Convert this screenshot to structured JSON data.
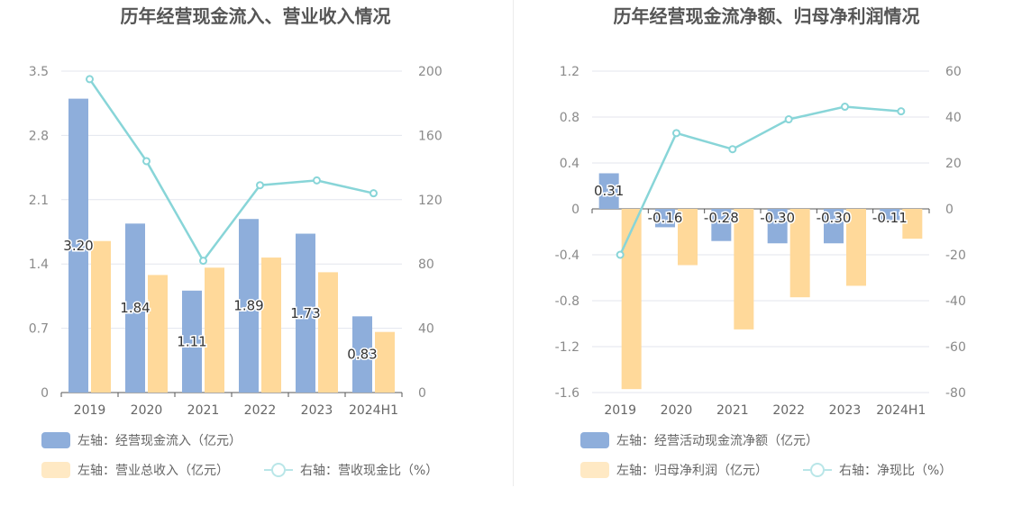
{
  "chart_data": [
    {
      "type": "bar",
      "title": "历年经营现金流入、营业收入情况",
      "categories": [
        "2019",
        "2020",
        "2021",
        "2022",
        "2023",
        "2024H1"
      ],
      "y_left": {
        "ticks": [
          "0",
          "0.7",
          "1.4",
          "2.1",
          "2.8",
          "3.5"
        ],
        "range": [
          0,
          3.5
        ]
      },
      "y_right": {
        "ticks": [
          "0",
          "40",
          "80",
          "120",
          "160",
          "200"
        ],
        "range": [
          0,
          200
        ]
      },
      "series": [
        {
          "name": "左轴：经营现金流入（亿元）",
          "type": "bar",
          "axis": "left",
          "color": "#8eaedb",
          "values": [
            3.2,
            1.84,
            1.11,
            1.89,
            1.73,
            0.83
          ],
          "labels": [
            "3.20",
            "1.84",
            "1.11",
            "1.89",
            "1.73",
            "0.83"
          ]
        },
        {
          "name": "左轴：营业总收入（亿元）",
          "type": "bar",
          "axis": "left",
          "color": "#ffd99a",
          "values": [
            1.65,
            1.28,
            1.36,
            1.47,
            1.31,
            0.66
          ]
        },
        {
          "name": "右轴：营收现金比（%）",
          "type": "line",
          "axis": "right",
          "color": "#88d5d8",
          "values": [
            195,
            144,
            82,
            129,
            132,
            124
          ]
        }
      ],
      "grid": true,
      "legend_position": "bottom-left"
    },
    {
      "type": "bar",
      "title": "历年经营现金流净额、归母净利润情况",
      "categories": [
        "2019",
        "2020",
        "2021",
        "2022",
        "2023",
        "2024H1"
      ],
      "y_left": {
        "ticks": [
          "-1.6",
          "-1.2",
          "-0.8",
          "-0.4",
          "0",
          "0.4",
          "0.8",
          "1.2"
        ],
        "range": [
          -1.6,
          1.2
        ]
      },
      "y_right": {
        "ticks": [
          "-80",
          "-60",
          "-40",
          "-20",
          "0",
          "20",
          "40",
          "60"
        ],
        "range": [
          -80,
          60
        ]
      },
      "series": [
        {
          "name": "左轴：经营活动现金流净额（亿元）",
          "type": "bar",
          "axis": "left",
          "color": "#8eaedb",
          "values": [
            0.31,
            -0.16,
            -0.28,
            -0.3,
            -0.3,
            -0.11
          ],
          "labels": [
            "0.31",
            "-0.16",
            "-0.28",
            "-0.30",
            "-0.30",
            "-0.11"
          ]
        },
        {
          "name": "左轴：归母净利润（亿元）",
          "type": "bar",
          "axis": "left",
          "color": "#ffd99a",
          "values": [
            -1.57,
            -0.49,
            -1.05,
            -0.77,
            -0.67,
            -0.26
          ]
        },
        {
          "name": "右轴：净现比（%）",
          "type": "line",
          "axis": "right",
          "color": "#88d5d8",
          "values": [
            -20,
            33,
            26,
            39,
            44.5,
            42.5
          ]
        }
      ],
      "grid": true,
      "legend_position": "bottom-left"
    }
  ]
}
